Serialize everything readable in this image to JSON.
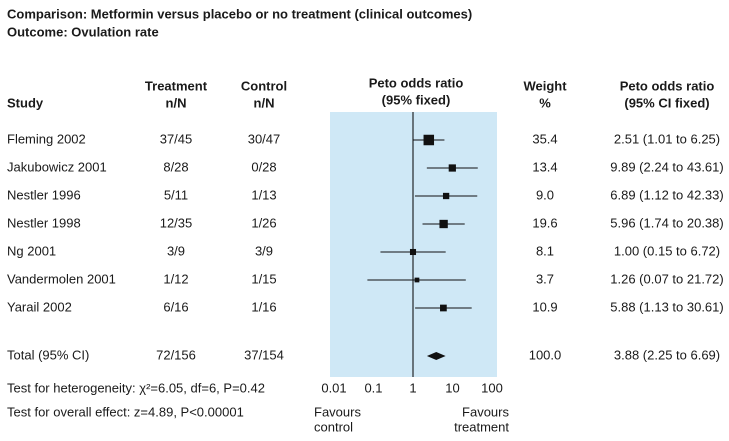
{
  "chart_data": {
    "type": "forest",
    "title": "Comparison: Metformin versus placebo or no treatment (clinical outcomes)",
    "subtitle": "Outcome: Ovulation rate",
    "headers": {
      "study": [
        "Study"
      ],
      "treatment": [
        "Treatment",
        "n/N"
      ],
      "control": [
        "Control",
        "n/N"
      ],
      "plot": [
        "Peto odds ratio",
        "(95% fixed)"
      ],
      "weight": [
        "Weight",
        "%"
      ],
      "estimate": [
        "Peto odds ratio",
        "(95% CI fixed)"
      ]
    },
    "categories": [
      "Fleming 2002",
      "Jakubowicz 2001",
      "Nestler 1996",
      "Nestler 1998",
      "Ng 2001",
      "Vandermolen 2001",
      "Yarail 2002"
    ],
    "treatment": [
      "37/45",
      "8/28",
      "5/11",
      "12/35",
      "3/9",
      "1/12",
      "6/16"
    ],
    "control": [
      "30/47",
      "0/28",
      "1/13",
      "1/26",
      "3/9",
      "1/15",
      "1/16"
    ],
    "weights": [
      35.4,
      13.4,
      9.0,
      19.6,
      8.1,
      3.7,
      10.9
    ],
    "weight_labels": [
      "35.4",
      "13.4",
      "9.0",
      "19.6",
      "8.1",
      "3.7",
      "10.9"
    ],
    "values": [
      2.51,
      9.89,
      6.89,
      5.96,
      1.0,
      1.26,
      5.88
    ],
    "ci_low": [
      1.01,
      2.24,
      1.12,
      1.74,
      0.15,
      0.07,
      1.13
    ],
    "ci_high": [
      6.25,
      43.61,
      42.33,
      20.38,
      6.72,
      21.72,
      30.61
    ],
    "value_labels": [
      "2.51 (1.01 to 6.25)",
      "9.89 (2.24 to 43.61)",
      "6.89 (1.12 to 42.33)",
      "5.96 (1.74 to 20.38)",
      "1.00 (0.15 to 6.72)",
      "1.26 (0.07 to 21.72)",
      "5.88 (1.13 to 30.61)"
    ],
    "total": {
      "label": "Total (95% CI)",
      "treatment": "72/156",
      "control": "37/154",
      "weight": 100.0,
      "weight_label": "100.0",
      "value": 3.88,
      "ci_low": 2.25,
      "ci_high": 6.69,
      "value_label": "3.88 (2.25 to 6.69)"
    },
    "heterogeneity": "Test for heterogeneity: χ²=6.05, df=6, P=0.42",
    "overall_effect": "Test for overall effect: z=4.89, P<0.00001",
    "xscale": "log",
    "xlim": [
      0.01,
      100
    ],
    "xticks": [
      0.01,
      0.1,
      1,
      10,
      100
    ],
    "reference_line": 1,
    "left_label": [
      "Favours",
      "control"
    ],
    "right_label": [
      "Favours",
      "treatment"
    ],
    "plot_color": "#cfe8f6",
    "color": "#111111"
  }
}
